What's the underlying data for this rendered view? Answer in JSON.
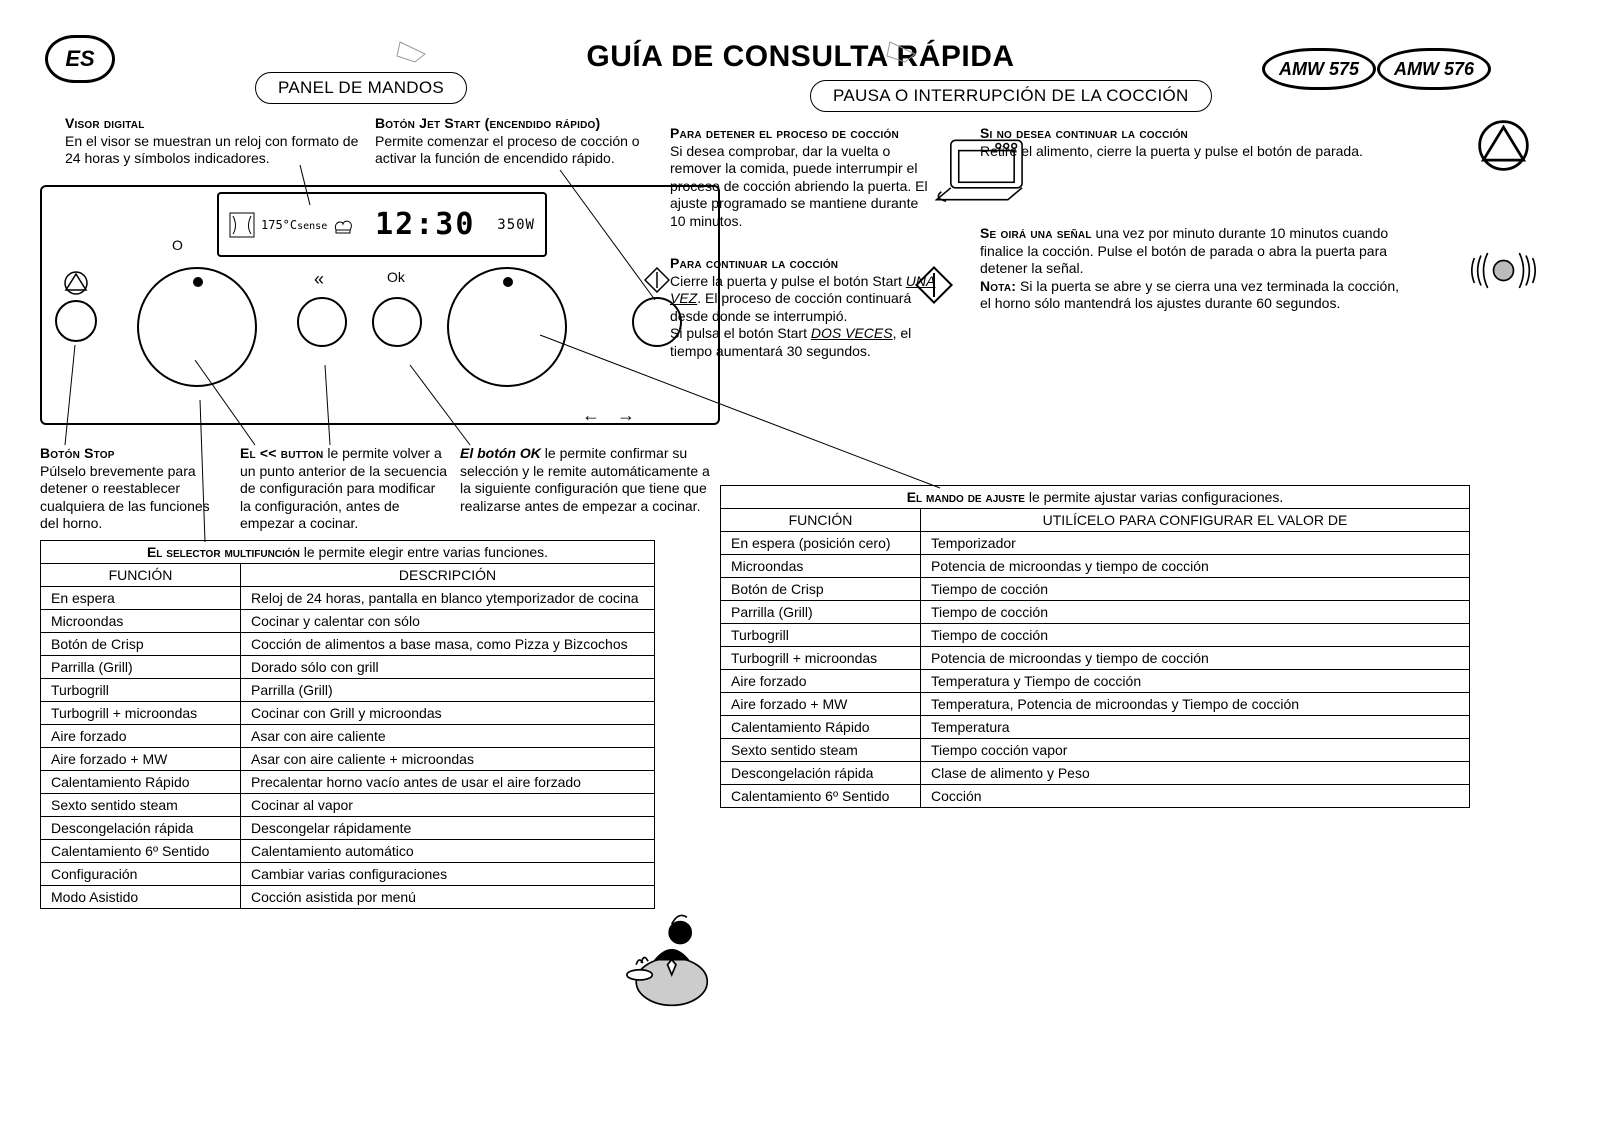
{
  "doc_title": "GUÍA DE CONSULTA RÁPIDA",
  "lang_badge": "ES",
  "models": {
    "a": "AMW 575",
    "b": "AMW 576"
  },
  "bubbles": {
    "left": "PANEL DE MANDOS",
    "right": "PAUSA O INTERRUPCIÓN DE LA COCCIÓN"
  },
  "display": {
    "temp": "175°C",
    "sense": "sense",
    "time": "12:30",
    "power": "350W",
    "arrows": "← →"
  },
  "panel_labels": {
    "o_mark": "O",
    "back": "«",
    "ok": "Ok"
  },
  "callouts": {
    "visor": {
      "hd": "Visor digital",
      "body": "En el visor se muestran un reloj con formato de 24 horas y símbolos indicadores."
    },
    "jet": {
      "hd": "Botón Jet Start (encendido rápido)",
      "body": "Permite comenzar el proceso de cocción o activar la función de encendido rápido."
    },
    "stop": {
      "hd": "Botón Stop",
      "body": "Púlselo brevemente para detener o reestablecer cualquiera de las funciones del horno."
    },
    "back": {
      "hd": "El << button",
      "body": " le permite volver a un punto anterior de la secuencia de configuración para modificar la configuración, antes de empezar a cocinar."
    },
    "ok": {
      "hd": "El botón OK",
      "body": " le permite confirmar su selección y le remite automáticamente a la siguiente configuración que tiene que realizarse antes de empezar a cocinar."
    },
    "detener": {
      "hd": "Para detener el proceso de cocción",
      "body": "Si desea comprobar, dar la vuelta o remover la comida, puede interrumpir el proceso de cocción abriendo la puerta. El ajuste programado se mantiene durante 10 minutos."
    },
    "continuar": {
      "hd": "Para continuar la cocción",
      "l1a": "Cierre la puerta y pulse el botón Start ",
      "l1b": "UNA VEZ",
      "l1c": ". El proceso de cocción continuará desde donde se interrumpió.",
      "l2a": "Si pulsa el botón Start ",
      "l2b": "DOS VECES",
      "l2c": ", el tiempo aumentará 30 segundos."
    },
    "nodesea": {
      "hd": "Si no desea continuar la cocción",
      "body": "Retire el alimento, cierre la puerta y pulse el botón de parada."
    },
    "senal": {
      "hd": "Se oirá una señal",
      "l1": " una vez por minuto durante 10 minutos cuando finalice la cocción. Pulse el botón de parada o abra la puerta para detener la señal.",
      "nota_hd": "Nota:",
      "nota": " Si la puerta se abre y se cierra una vez terminada la cocción, el horno sólo mantendrá los ajustes durante 60 segundos."
    }
  },
  "table1": {
    "caption_b": "El selector multifunción",
    "caption_rest": " le permite elegir entre varias funciones.",
    "h1": "FUNCIÓN",
    "h2": "DESCRIPCIÓN",
    "rows": [
      [
        "En espera",
        "Reloj de 24 horas, pantalla en blanco ytemporizador de cocina"
      ],
      [
        "Microondas",
        "Cocinar y calentar con sólo"
      ],
      [
        "Botón de Crisp",
        "Cocción de alimentos a base masa, como Pizza y Bizcochos"
      ],
      [
        "Parrilla (Grill)",
        "Dorado sólo con grill"
      ],
      [
        "Turbogrill",
        "Parrilla (Grill)"
      ],
      [
        "Turbogrill + microondas",
        "Cocinar con Grill y microondas"
      ],
      [
        "Aire forzado",
        "Asar con aire caliente"
      ],
      [
        "Aire forzado + MW",
        "Asar con aire caliente + microondas"
      ],
      [
        "Calentamiento Rápido",
        "Precalentar horno vacío antes de usar el aire forzado"
      ],
      [
        "Sexto sentido steam",
        "Cocinar al vapor"
      ],
      [
        "Descongelación rápida",
        "Descongelar rápidamente"
      ],
      [
        "Calentamiento 6º Sentido",
        "Calentamiento automático"
      ],
      [
        "Configuración",
        "Cambiar varias configuraciones"
      ],
      [
        "Modo Asistido",
        "Cocción asistida por menú"
      ]
    ]
  },
  "table2": {
    "caption_b": "El mando de ajuste",
    "caption_rest": " le permite ajustar varias configuraciones.",
    "h1": "FUNCIÓN",
    "h2": "UTILÍCELO PARA CONFIGURAR EL VALOR DE",
    "rows": [
      [
        "En espera (posición cero)",
        "Temporizador"
      ],
      [
        "Microondas",
        "Potencia de microondas y tiempo de cocción"
      ],
      [
        "Botón de Crisp",
        "Tiempo de cocción"
      ],
      [
        "Parrilla (Grill)",
        "Tiempo de cocción"
      ],
      [
        "Turbogrill",
        "Tiempo de cocción"
      ],
      [
        "Turbogrill + microondas",
        "Potencia de microondas y tiempo de cocción"
      ],
      [
        "Aire forzado",
        "Temperatura y Tiempo de cocción"
      ],
      [
        "Aire forzado + MW",
        "Temperatura, Potencia de microondas y Tiempo de cocción"
      ],
      [
        "Calentamiento Rápido",
        "Temperatura"
      ],
      [
        "Sexto sentido steam",
        "Tiempo cocción vapor"
      ],
      [
        "Descongelación rápida",
        "Clase de alimento y Peso"
      ],
      [
        "Calentamiento 6º Sentido",
        "Cocción"
      ]
    ]
  },
  "style": {
    "text_color": "#000000",
    "bg_color": "#ffffff",
    "line_color": "#000000",
    "title_fontsize": 30,
    "body_fontsize": 14
  }
}
